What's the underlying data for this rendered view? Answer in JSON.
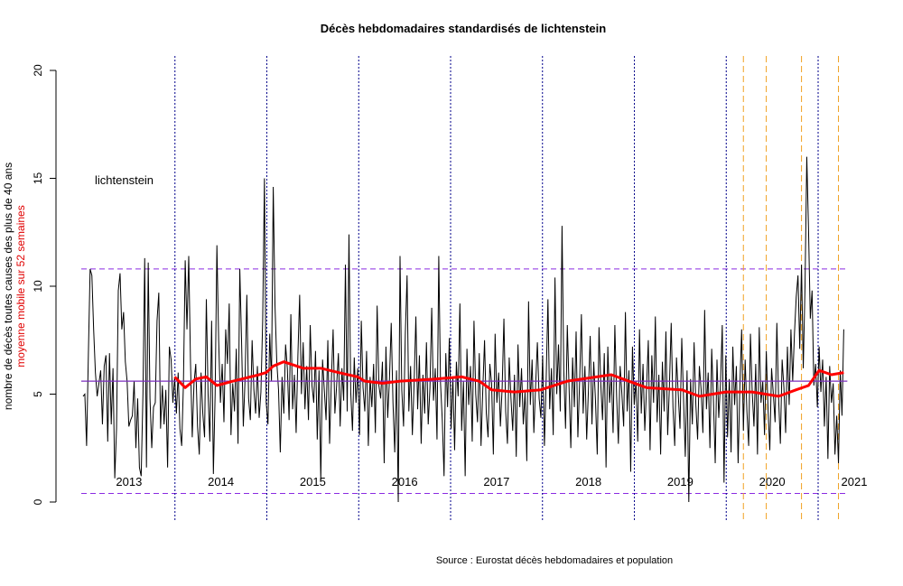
{
  "chart_data": {
    "type": "line",
    "title": "Décès hebdomadaires standardisés de lichtenstein",
    "ylabel": "nombre de décès toutes causes des plus de 40 ans",
    "ylabel2": "moyenne mobile sur 52 semaines",
    "annotation": "lichtenstein",
    "source": "Source : Eurostat décès hebdomadaires et population",
    "ylim": [
      0,
      20
    ],
    "yticks": [
      "0",
      "5",
      "10",
      "15",
      "20"
    ],
    "year_labels": [
      "2013",
      "2014",
      "2015",
      "2016",
      "2017",
      "2018",
      "2019",
      "2020",
      "2021"
    ],
    "mean": 5.6,
    "upper": 10.8,
    "lower": 0.4,
    "orange_weeks": [
      375,
      388,
      408,
      429
    ],
    "colors": {
      "series": "#000000",
      "moving_avg": "#ff0000",
      "mean": "#7b2fbe",
      "bounds": "#8a2be2",
      "year_lines": "#00008b",
      "orange": "#f0a020"
    },
    "weekly": [
      4.9,
      5,
      2.6,
      6.8,
      10.8,
      10.5,
      8,
      6,
      4.9,
      5.5,
      6.1,
      3.6,
      6.3,
      6.8,
      2.8,
      6.9,
      3.6,
      6.2,
      1.1,
      3.4,
      9.8,
      10.6,
      8,
      8.8,
      6.5,
      5.6,
      3.5,
      3.8,
      4,
      5.6,
      2.5,
      4.8,
      1.6,
      1.2,
      5,
      11.3,
      1.6,
      11.1,
      4.8,
      2.5,
      4.4,
      4.6,
      8.4,
      9.7,
      3.4,
      5.4,
      3.6,
      5.2,
      1.6,
      7.2,
      6.6,
      4.6,
      5.8,
      4.1,
      6,
      3.4,
      2.6,
      5.5,
      11.2,
      8,
      11.4,
      6.5,
      3,
      5.5,
      6.4,
      3.5,
      2.2,
      6,
      4.1,
      3,
      9.4,
      5,
      2.8,
      8.4,
      1.3,
      5,
      11.9,
      7.5,
      4.6,
      6.4,
      3.7,
      8,
      6.4,
      9.2,
      3.1,
      5.5,
      4.2,
      7.1,
      2.7,
      10.8,
      7.5,
      3.5,
      5.7,
      9.6,
      4.8,
      3.8,
      7.5,
      5.2,
      4.1,
      6.3,
      3.9,
      5.1,
      8.4,
      15,
      4.6,
      3.6,
      7.8,
      5.6,
      14.6,
      9.1,
      6.5,
      5.2,
      2.3,
      5.8,
      4.1,
      7.3,
      6.2,
      3.8,
      8.7,
      4.3,
      5.9,
      3.2,
      6.8,
      9.6,
      5,
      7.4,
      4.3,
      6.3,
      3.8,
      8.2,
      5.4,
      4.6,
      7,
      2.9,
      6.1,
      1,
      6.6,
      5.2,
      3.8,
      7.5,
      2.7,
      5.6,
      8,
      4.1,
      5.4,
      6.9,
      3.5,
      6.2,
      4.7,
      11,
      4.2,
      12.4,
      5.1,
      3.3,
      6.7,
      4.6,
      6.2,
      3.1,
      8.4,
      5.3,
      4.2,
      7,
      2.6,
      5.8,
      4.4,
      6.4,
      3.2,
      9.1,
      5.4,
      4.8,
      6.5,
      1.8,
      7.2,
      3.9,
      5.7,
      8.3,
      4.6,
      2.3,
      6.1,
      0,
      11.4,
      5.2,
      3.5,
      7.8,
      10.5,
      4.2,
      6.3,
      3.1,
      5.5,
      8.6,
      4.3,
      6.8,
      2.7,
      5.9,
      4.1,
      7.4,
      3.6,
      5.3,
      9,
      4.7,
      6.2,
      2.9,
      11.4,
      5.5,
      3.8,
      1.2,
      6.9,
      4.4,
      7.6,
      3.4,
      5.8,
      2.4,
      6.5,
      4.9,
      9.2,
      3.3,
      5.6,
      1.2,
      7.1,
      4.5,
      6.3,
      2.8,
      8.4,
      5,
      3.7,
      6.9,
      2.6,
      5.2,
      7.5,
      4.1,
      3,
      6.4,
      5.5,
      2.2,
      7.8,
      4.6,
      6,
      3.5,
      5.3,
      8.5,
      4.2,
      2.7,
      6.7,
      4.8,
      3.3,
      5.9,
      2.1,
      7.3,
      4.4,
      6.2,
      3.6,
      5.1,
      1.9,
      9.3,
      4.5,
      6.6,
      3.2,
      5.4,
      7.4,
      4.8,
      3.9,
      6.8,
      2.6,
      5.7,
      9.4,
      4.3,
      6.2,
      3.1,
      10.4,
      5,
      7.3,
      4.2,
      12.8,
      6.1,
      3.4,
      8.2,
      5.3,
      2.5,
      6.7,
      4.4,
      7.9,
      3,
      5.6,
      8.7,
      4.1,
      6.3,
      2.9,
      5.2,
      7.7,
      3.6,
      6.5,
      4.7,
      2.2,
      8.1,
      5.5,
      3.8,
      6.9,
      1.6,
      7.2,
      4.6,
      5.9,
      3.2,
      8.2,
      4.9,
      2.7,
      6.3,
      5,
      3.5,
      8.8,
      4.2,
      6.1,
      1.4,
      7.2,
      4.5,
      5.6,
      2.8,
      8,
      4.1,
      6.4,
      3.3,
      5.3,
      7.5,
      2.4,
      6.8,
      4.6,
      8.6,
      3.7,
      5.9,
      2.2,
      6.5,
      4.2,
      7.9,
      3.1,
      5.4,
      8.3,
      4.4,
      2.6,
      6.7,
      5,
      3.4,
      7.6,
      4.8,
      2.1,
      6.1,
      0,
      5.7,
      3.6,
      7.4,
      4.5,
      2.9,
      6.3,
      5.2,
      3.2,
      8.9,
      4.3,
      6,
      2.5,
      7.1,
      4.7,
      1.8,
      6.6,
      3.9,
      5.5,
      8.2,
      0.9,
      6.8,
      3,
      5.7,
      2.3,
      7.2,
      4.5,
      6.3,
      1.8,
      5.4,
      8,
      3.3,
      6.6,
      4.2,
      2.6,
      7.8,
      5.1,
      3.5,
      6.4,
      2.2,
      8.1,
      4.6,
      5.6,
      3.1,
      7,
      4.3,
      2.4,
      6.2,
      5,
      3.7,
      8.3,
      4.8,
      2.7,
      6.6,
      5.3,
      3.2,
      7.2,
      4.5,
      8,
      5.6,
      7.8,
      9.5,
      10.5,
      7.1,
      11,
      6.2,
      10,
      16,
      12.6,
      8.5,
      9.8,
      5.4,
      6.4,
      4.4,
      7.2,
      5.1,
      6.6,
      3.5,
      5.8,
      2,
      6.3,
      4.6,
      5.5,
      2.2,
      4,
      1.8,
      6.1,
      4,
      8
    ],
    "moving_avg": [
      [
        52,
        5.8
      ],
      [
        58,
        5.3
      ],
      [
        64,
        5.7
      ],
      [
        70,
        5.8
      ],
      [
        76,
        5.4
      ],
      [
        85,
        5.6
      ],
      [
        100,
        5.9
      ],
      [
        104,
        6
      ],
      [
        108,
        6.3
      ],
      [
        114,
        6.5
      ],
      [
        125,
        6.2
      ],
      [
        135,
        6.2
      ],
      [
        145,
        6
      ],
      [
        156,
        5.8
      ],
      [
        160,
        5.6
      ],
      [
        170,
        5.5
      ],
      [
        180,
        5.6
      ],
      [
        200,
        5.7
      ],
      [
        215,
        5.8
      ],
      [
        225,
        5.6
      ],
      [
        232,
        5.2
      ],
      [
        245,
        5.1
      ],
      [
        260,
        5.2
      ],
      [
        275,
        5.6
      ],
      [
        300,
        5.9
      ],
      [
        310,
        5.6
      ],
      [
        320,
        5.3
      ],
      [
        340,
        5.2
      ],
      [
        350,
        4.9
      ],
      [
        365,
        5.1
      ],
      [
        380,
        5.1
      ],
      [
        395,
        4.9
      ],
      [
        405,
        5.2
      ],
      [
        412,
        5.4
      ],
      [
        418,
        6.1
      ],
      [
        425,
        5.9
      ],
      [
        432,
        6
      ]
    ]
  }
}
